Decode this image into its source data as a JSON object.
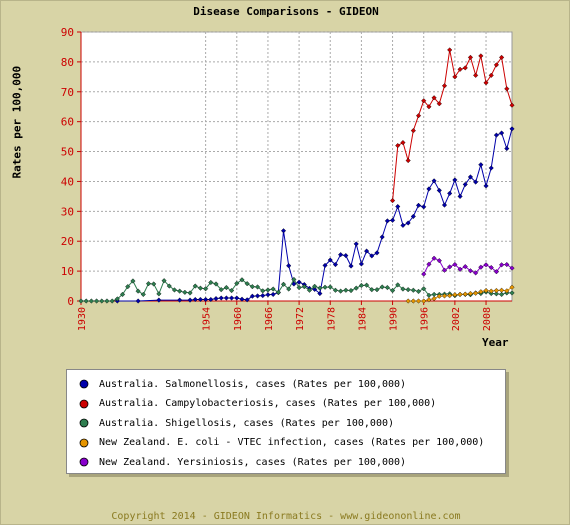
{
  "title": "Disease Comparisons - GIDEON",
  "ylabel": "Rates per 100,000",
  "xlabel": "Year",
  "footer": "Copyright 2014 - GIDEON Informatics - www.gideononline.com",
  "legend": [
    "Australia. Salmonellosis, cases (Rates per 100,000)",
    "Australia. Campylobacteriosis, cases (Rates per 100,000)",
    "Australia. Shigellosis, cases (Rates per 100,000)",
    "New Zealand. E. coli - VTEC infection, cases (Rates per 100,000)",
    "New Zealand. Yersiniosis, cases (Rates per 100,000)"
  ],
  "colors": {
    "salmonellosis": "#0000aa",
    "campylobacteriosis": "#cc0000",
    "shigellosis": "#2e7d4f",
    "ecoli": "#e69500",
    "yersiniosis": "#8800cc",
    "axis": "#cc0000",
    "grid": "#aaaaaa"
  },
  "chart_data": {
    "type": "line",
    "xlim": [
      1930,
      2013
    ],
    "ylim": [
      0,
      90
    ],
    "xticks": [
      1930,
      1954,
      1960,
      1966,
      1972,
      1978,
      1984,
      1990,
      1996,
      2002,
      2008
    ],
    "yticks": [
      0,
      10,
      20,
      30,
      40,
      50,
      60,
      70,
      80,
      90
    ],
    "series": [
      {
        "name": "Australia. Salmonellosis, cases (Rates per 100,000)",
        "color": "#0000aa",
        "x": [
          1937,
          1941,
          1945,
          1949,
          1951,
          1952,
          1953,
          1954,
          1955,
          1956,
          1957,
          1958,
          1959,
          1960,
          1961,
          1962,
          1963,
          1964,
          1965,
          1966,
          1967,
          1968,
          1969,
          1970,
          1971,
          1972,
          1973,
          1974,
          1975,
          1976,
          1977,
          1978,
          1979,
          1980,
          1981,
          1982,
          1983,
          1984,
          1985,
          1986,
          1987,
          1988,
          1989,
          1990,
          1991,
          1992,
          1993,
          1994,
          1995,
          1996,
          1997,
          1998,
          1999,
          2000,
          2001,
          2002,
          2003,
          2004,
          2005,
          2006,
          2007,
          2008,
          2009,
          2010,
          2011,
          2012,
          2013
        ],
        "y": [
          0,
          0,
          0.3,
          0.3,
          0.3,
          0.5,
          0.5,
          0.5,
          0.5,
          0.8,
          1,
          1,
          1,
          1,
          0.6,
          0.4,
          1.6,
          1.7,
          1.8,
          2.1,
          2.2,
          2.8,
          23.5,
          11.8,
          5.7,
          6.3,
          5.5,
          4.2,
          3.9,
          2.5,
          11.9,
          13.7,
          12.2,
          15.5,
          15.2,
          11.7,
          19.1,
          12.4,
          16.7,
          15.1,
          16.1,
          21.4,
          26.8,
          27,
          31.6,
          25.3,
          26.1,
          28.3,
          32,
          31.5,
          37.5,
          40.2,
          37,
          32.1,
          36,
          40.5,
          35,
          39,
          41.5,
          39.8,
          45.6,
          38.5,
          44.5,
          55.5,
          56.2,
          51,
          57.6
        ]
      },
      {
        "name": "Australia. Campylobacteriosis, cases (Rates per 100,000)",
        "color": "#cc0000",
        "x": [
          1990,
          1991,
          1992,
          1993,
          1994,
          1995,
          1996,
          1997,
          1998,
          1999,
          2000,
          2001,
          2002,
          2003,
          2004,
          2005,
          2006,
          2007,
          2008,
          2009,
          2010,
          2011,
          2012,
          2013
        ],
        "y": [
          33.6,
          52,
          53,
          47,
          57,
          62,
          67,
          65,
          68,
          66,
          72,
          84,
          75,
          77.5,
          78,
          81.5,
          75.5,
          82,
          73,
          75.5,
          79,
          81.5,
          71,
          65.5
        ]
      },
      {
        "name": "Australia. Shigellosis, cases (Rates per 100,000)",
        "color": "#2e7d4f",
        "x": [
          1930,
          1931,
          1932,
          1933,
          1934,
          1935,
          1936,
          1937,
          1938,
          1939,
          1940,
          1941,
          1942,
          1943,
          1944,
          1945,
          1946,
          1947,
          1948,
          1949,
          1950,
          1951,
          1952,
          1953,
          1954,
          1955,
          1956,
          1957,
          1958,
          1959,
          1960,
          1961,
          1962,
          1963,
          1964,
          1965,
          1966,
          1967,
          1968,
          1969,
          1970,
          1971,
          1972,
          1973,
          1974,
          1975,
          1976,
          1977,
          1978,
          1979,
          1980,
          1981,
          1982,
          1983,
          1984,
          1985,
          1986,
          1987,
          1988,
          1989,
          1990,
          1991,
          1992,
          1993,
          1994,
          1995,
          1996,
          1997,
          1998,
          1999,
          2000,
          2001,
          2002,
          2003,
          2004,
          2005,
          2006,
          2007,
          2008,
          2009,
          2010,
          2011,
          2012,
          2013
        ],
        "y": [
          0,
          0,
          0,
          0,
          0,
          0,
          0,
          0.7,
          2.2,
          4.8,
          6.7,
          3.3,
          2.2,
          5.8,
          5.7,
          2.4,
          6.8,
          5,
          3.7,
          3.3,
          2.9,
          2.7,
          5,
          4.3,
          4.1,
          6.2,
          5.7,
          3.8,
          4.5,
          3.5,
          5.9,
          7.1,
          5.8,
          4.8,
          4.7,
          3.4,
          3.7,
          4,
          2.9,
          5.6,
          4,
          7.2,
          4.5,
          4.8,
          3.6,
          4.9,
          4.3,
          4.6,
          4.7,
          3.6,
          3.3,
          3.6,
          3.5,
          4.3,
          5.2,
          5.3,
          3.8,
          3.8,
          4.7,
          4.5,
          3.5,
          5.4,
          4,
          3.8,
          3.6,
          3.2,
          4.1,
          1.9,
          2.2,
          2.2,
          2.3,
          2.4,
          1.8,
          2.2,
          2.2,
          2.1,
          2.7,
          2.5,
          3,
          2.5,
          2.4,
          2.2,
          2.7,
          2.7
        ]
      },
      {
        "name": "New Zealand. E. coli - VTEC infection, cases (Rates per 100,000)",
        "color": "#e69500",
        "x": [
          1993,
          1994,
          1995,
          1996,
          1997,
          1998,
          1999,
          2000,
          2001,
          2002,
          2003,
          2004,
          2005,
          2006,
          2007,
          2008,
          2009,
          2010,
          2011,
          2012,
          2013
        ],
        "y": [
          0,
          0,
          0,
          0,
          0.4,
          0.8,
          1.6,
          1.7,
          1.8,
          2.1,
          2.2,
          2.3,
          2.5,
          2.6,
          3.1,
          3.5,
          3.3,
          3.5,
          3.6,
          3.4,
          4.6
        ]
      },
      {
        "name": "New Zealand. Yersiniosis, cases (Rates per 100,000)",
        "color": "#8800cc",
        "x": [
          1996,
          1997,
          1998,
          1999,
          2000,
          2001,
          2002,
          2003,
          2004,
          2005,
          2006,
          2007,
          2008,
          2009,
          2010,
          2011,
          2012,
          2013
        ],
        "y": [
          9,
          12.3,
          14.3,
          13.5,
          10.3,
          11.4,
          12.2,
          10.6,
          11.5,
          10.1,
          9.4,
          11.3,
          12.1,
          11.2,
          9.8,
          12.1,
          12.2,
          11
        ]
      }
    ]
  }
}
